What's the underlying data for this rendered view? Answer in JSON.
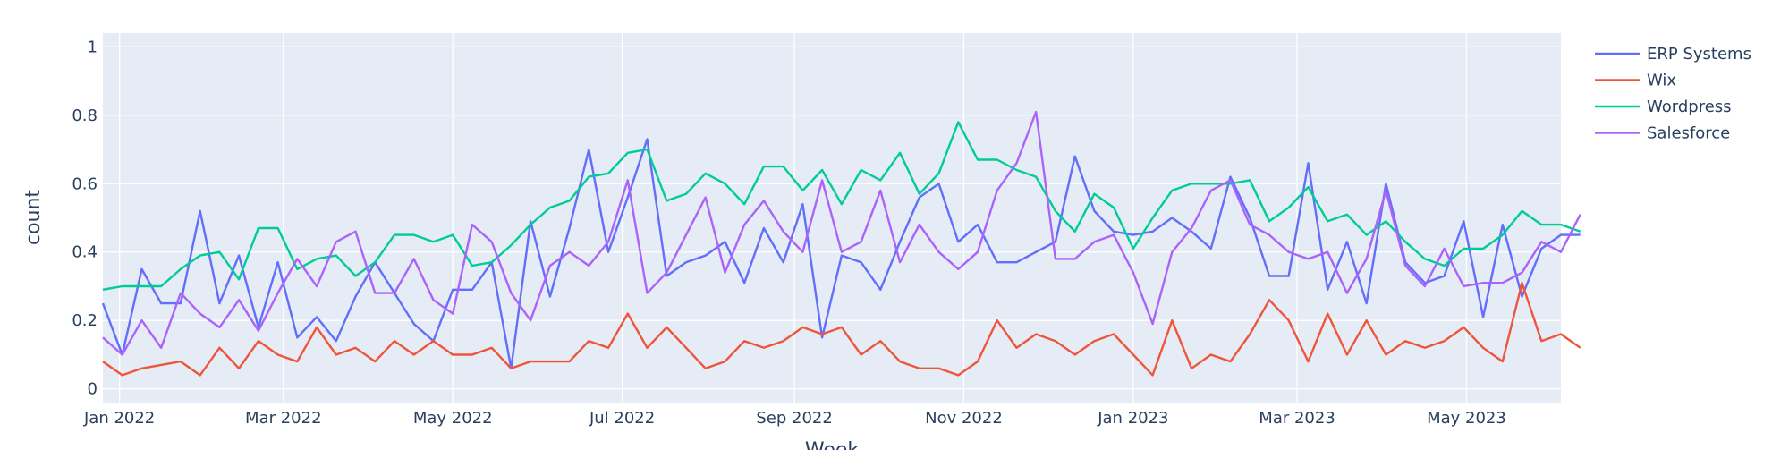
{
  "chart_data": {
    "type": "line",
    "xlabel": "Week",
    "ylabel": "count",
    "ylim": [
      -0.04,
      1.04
    ],
    "grid": true,
    "legend_position": "right",
    "x_start": "2021-12-26",
    "x_end": "2023-06-04",
    "x_step_days": 7,
    "x_ticks": [
      {
        "date": "2022-01-01",
        "label": "Jan 2022"
      },
      {
        "date": "2022-03-01",
        "label": "Mar 2022"
      },
      {
        "date": "2022-05-01",
        "label": "May 2022"
      },
      {
        "date": "2022-07-01",
        "label": "Jul 2022"
      },
      {
        "date": "2022-09-01",
        "label": "Sep 2022"
      },
      {
        "date": "2022-11-01",
        "label": "Nov 2022"
      },
      {
        "date": "2023-01-01",
        "label": "Jan 2023"
      },
      {
        "date": "2023-03-01",
        "label": "Mar 2023"
      },
      {
        "date": "2023-05-01",
        "label": "May 2023"
      }
    ],
    "y_ticks": [
      {
        "value": 0,
        "label": "0"
      },
      {
        "value": 0.2,
        "label": "0.2"
      },
      {
        "value": 0.4,
        "label": "0.4"
      },
      {
        "value": 0.6,
        "label": "0.6"
      },
      {
        "value": 0.8,
        "label": "0.8"
      },
      {
        "value": 1,
        "label": "1"
      }
    ],
    "series": [
      {
        "name": "ERP Systems",
        "color": "#636efa",
        "values": [
          0.25,
          0.1,
          0.35,
          0.25,
          0.25,
          0.52,
          0.25,
          0.39,
          0.18,
          0.37,
          0.15,
          0.21,
          0.14,
          0.27,
          0.37,
          0.28,
          0.19,
          0.14,
          0.29,
          0.29,
          0.37,
          0.06,
          0.49,
          0.27,
          0.47,
          0.7,
          0.4,
          0.56,
          0.73,
          0.33,
          0.37,
          0.39,
          0.43,
          0.31,
          0.47,
          0.37,
          0.54,
          0.15,
          0.39,
          0.37,
          0.29,
          0.43,
          0.56,
          0.6,
          0.43,
          0.48,
          0.37,
          0.37,
          0.4,
          0.43,
          0.68,
          0.52,
          0.46,
          0.45,
          0.46,
          0.5,
          0.46,
          0.41,
          0.62,
          0.5,
          0.33,
          0.33,
          0.66,
          0.29,
          0.43,
          0.25,
          0.6,
          0.37,
          0.31,
          0.33,
          0.49,
          0.21,
          0.48,
          0.27,
          0.41,
          0.45,
          0.45
        ]
      },
      {
        "name": "Wix",
        "color": "#ef553b",
        "values": [
          0.08,
          0.04,
          0.06,
          0.07,
          0.08,
          0.04,
          0.12,
          0.06,
          0.14,
          0.1,
          0.08,
          0.18,
          0.1,
          0.12,
          0.08,
          0.14,
          0.1,
          0.14,
          0.1,
          0.1,
          0.12,
          0.06,
          0.08,
          0.08,
          0.08,
          0.14,
          0.12,
          0.22,
          0.12,
          0.18,
          0.12,
          0.06,
          0.08,
          0.14,
          0.12,
          0.14,
          0.18,
          0.16,
          0.18,
          0.1,
          0.14,
          0.08,
          0.06,
          0.06,
          0.04,
          0.08,
          0.2,
          0.12,
          0.16,
          0.14,
          0.1,
          0.14,
          0.16,
          0.1,
          0.04,
          0.2,
          0.06,
          0.1,
          0.08,
          0.16,
          0.26,
          0.2,
          0.08,
          0.22,
          0.1,
          0.2,
          0.1,
          0.14,
          0.12,
          0.14,
          0.18,
          0.12,
          0.08,
          0.31,
          0.14,
          0.16,
          0.12
        ]
      },
      {
        "name": "Wordpress",
        "color": "#00cc96",
        "values": [
          0.29,
          0.3,
          0.3,
          0.3,
          0.35,
          0.39,
          0.4,
          0.32,
          0.47,
          0.47,
          0.35,
          0.38,
          0.39,
          0.33,
          0.37,
          0.45,
          0.45,
          0.43,
          0.45,
          0.36,
          0.37,
          0.42,
          0.48,
          0.53,
          0.55,
          0.62,
          0.63,
          0.69,
          0.7,
          0.55,
          0.57,
          0.63,
          0.6,
          0.54,
          0.65,
          0.65,
          0.58,
          0.64,
          0.54,
          0.64,
          0.61,
          0.69,
          0.57,
          0.63,
          0.78,
          0.67,
          0.67,
          0.64,
          0.62,
          0.52,
          0.46,
          0.57,
          0.53,
          0.41,
          0.5,
          0.58,
          0.6,
          0.6,
          0.6,
          0.61,
          0.49,
          0.53,
          0.59,
          0.49,
          0.51,
          0.45,
          0.49,
          0.43,
          0.38,
          0.36,
          0.41,
          0.41,
          0.45,
          0.52,
          0.48,
          0.48,
          0.46
        ]
      },
      {
        "name": "Salesforce",
        "color": "#ab63fa",
        "values": [
          0.15,
          0.1,
          0.2,
          0.12,
          0.28,
          0.22,
          0.18,
          0.26,
          0.17,
          0.28,
          0.38,
          0.3,
          0.43,
          0.46,
          0.28,
          0.28,
          0.38,
          0.26,
          0.22,
          0.48,
          0.43,
          0.28,
          0.2,
          0.36,
          0.4,
          0.36,
          0.43,
          0.61,
          0.28,
          0.34,
          0.45,
          0.56,
          0.34,
          0.48,
          0.55,
          0.46,
          0.4,
          0.61,
          0.4,
          0.43,
          0.58,
          0.37,
          0.48,
          0.4,
          0.35,
          0.4,
          0.58,
          0.66,
          0.81,
          0.38,
          0.38,
          0.43,
          0.45,
          0.34,
          0.19,
          0.4,
          0.47,
          0.58,
          0.61,
          0.48,
          0.45,
          0.4,
          0.38,
          0.4,
          0.28,
          0.38,
          0.58,
          0.36,
          0.3,
          0.41,
          0.3,
          0.31,
          0.31,
          0.34,
          0.43,
          0.4,
          0.51
        ]
      }
    ]
  }
}
